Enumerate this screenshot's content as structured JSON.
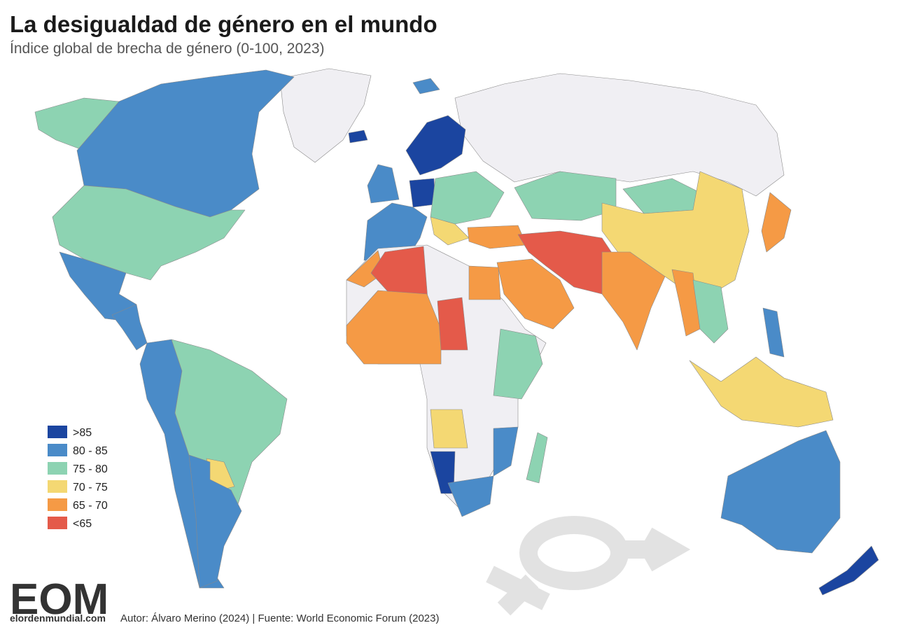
{
  "header": {
    "title": "La desigualdad de género en el mundo",
    "subtitle": "Índice global de brecha de género (0-100, 2023)"
  },
  "legend": [
    {
      "label": ">85",
      "color": "#1b45a0"
    },
    {
      "label": "80 - 85",
      "color": "#4a8bc8"
    },
    {
      "label": "75 - 80",
      "color": "#8dd3b2"
    },
    {
      "label": "70 - 75",
      "color": "#f4d873"
    },
    {
      "label": "65 - 70",
      "color": "#f59a45"
    },
    {
      "label": "<65",
      "color": "#e45a4a"
    }
  ],
  "footer": {
    "logo": "EOM",
    "site": "elordenmundial.com",
    "credits": "Autor: Álvaro Merino (2024) | Fuente: World Economic Forum (2023)"
  }
}
